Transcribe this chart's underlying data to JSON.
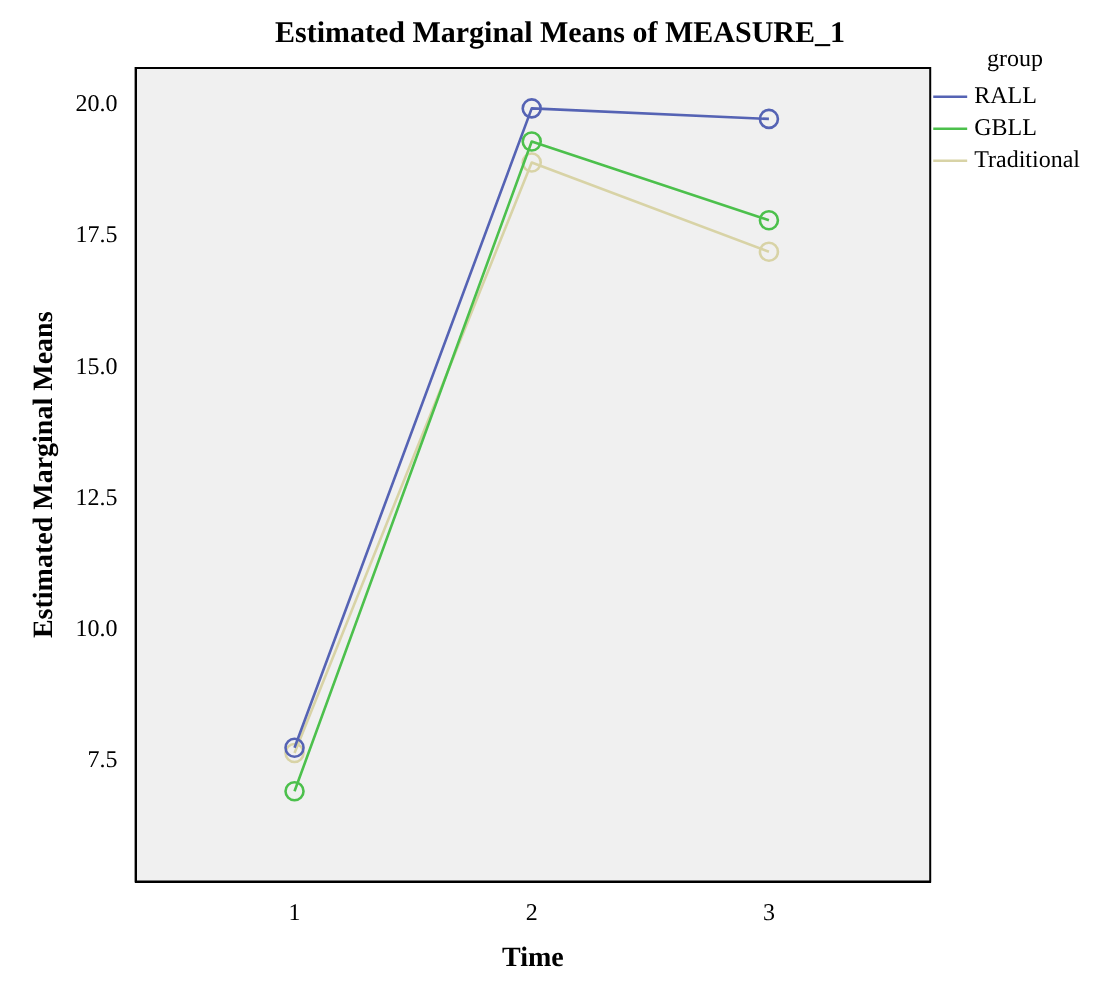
{
  "chart_data": {
    "type": "line",
    "title": "Estimated Marginal Means of MEASURE_1",
    "xlabel": "Time",
    "ylabel": "Estimated Marginal Means",
    "legend_title": "group",
    "x": [
      1,
      2,
      3
    ],
    "series": [
      {
        "name": "RALL",
        "color": "#5563b4",
        "values": [
          7.75,
          19.93,
          19.73
        ]
      },
      {
        "name": "GBLL",
        "color": "#4cc04c",
        "values": [
          6.92,
          19.3,
          17.8
        ]
      },
      {
        "name": "Traditional",
        "color": "#d8d3a6",
        "values": [
          7.65,
          18.9,
          17.2
        ]
      }
    ],
    "xlim": [
      0.33,
      3.68
    ],
    "xticks": [
      1,
      2,
      3
    ],
    "ylim": [
      5.2,
      20.7
    ],
    "yticks": [
      {
        "value": 7.5,
        "label": "7.5"
      },
      {
        "value": 10,
        "label": "10.0"
      },
      {
        "value": 12.5,
        "label": "12.5"
      },
      {
        "value": 15,
        "label": "15.0"
      },
      {
        "value": 17.5,
        "label": "17.5"
      },
      {
        "value": 20,
        "label": "20.0"
      }
    ],
    "grid": false,
    "legend": "right",
    "marker": "circle",
    "line_style": "solid"
  }
}
